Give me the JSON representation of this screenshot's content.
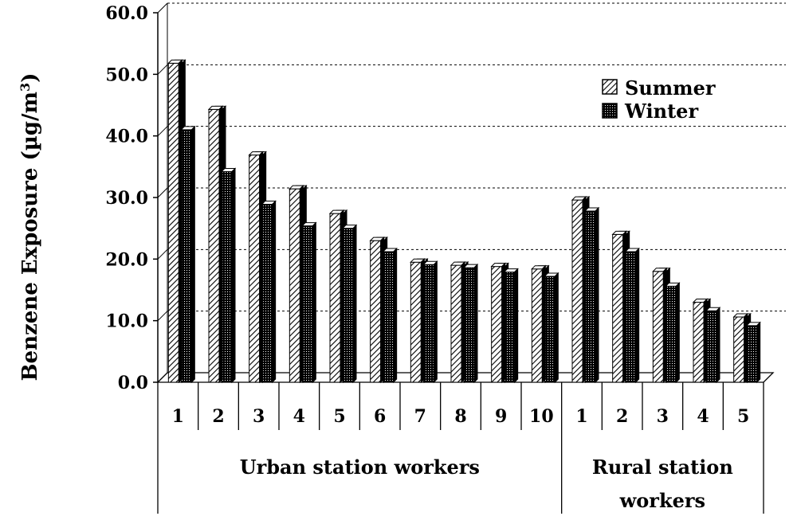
{
  "chart_data": {
    "type": "bar",
    "title": "",
    "ylabel_main": "Benzene Exposure (µg/m",
    "ylabel_sup": "3",
    "ylabel_close": ")",
    "ylim": [
      0,
      60
    ],
    "yticks": [
      "0.0",
      "10.0",
      "20.0",
      "30.0",
      "40.0",
      "50.0",
      "60.0"
    ],
    "grid": true,
    "legend_position": "top-right",
    "categories": [
      "1",
      "2",
      "3",
      "4",
      "5",
      "6",
      "7",
      "8",
      "9",
      "10",
      "1",
      "2",
      "3",
      "4",
      "5"
    ],
    "groups": [
      {
        "label": "Urban station workers",
        "count": 10
      },
      {
        "label_line1": "Rural station",
        "label_line2": "workers",
        "count": 5
      }
    ],
    "series": [
      {
        "name": "Summer",
        "values": [
          51.8,
          44.3,
          36.9,
          31.4,
          27.4,
          23.0,
          19.5,
          19.0,
          18.8,
          18.4,
          29.6,
          24.0,
          18.0,
          13.0,
          10.6
        ],
        "pattern": "hatch"
      },
      {
        "name": "Winter",
        "values": [
          41.0,
          34.2,
          28.9,
          25.4,
          25.0,
          21.2,
          19.1,
          18.6,
          17.9,
          17.2,
          27.8,
          21.2,
          15.6,
          11.6,
          9.2
        ],
        "pattern": "dots"
      }
    ]
  }
}
